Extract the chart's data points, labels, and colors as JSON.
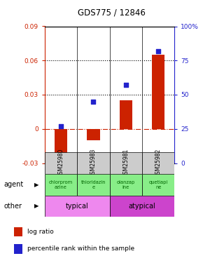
{
  "title": "GDS775 / 12846",
  "samples": [
    "GSM25980",
    "GSM25983",
    "GSM25981",
    "GSM25982"
  ],
  "log_ratios": [
    -0.035,
    -0.01,
    0.025,
    0.065
  ],
  "percentile_ranks": [
    27,
    45,
    57,
    82
  ],
  "left_ylim": [
    -0.03,
    0.09
  ],
  "right_ylim": [
    0,
    100
  ],
  "left_yticks": [
    -0.03,
    0.0,
    0.03,
    0.06,
    0.09
  ],
  "right_yticks": [
    0,
    25,
    50,
    75,
    100
  ],
  "left_ytick_labels": [
    "-0.03",
    "0",
    "0.03",
    "0.06",
    "0.09"
  ],
  "right_ytick_labels": [
    "0",
    "25",
    "50",
    "75",
    "100%"
  ],
  "hlines": [
    0.03,
    0.06
  ],
  "bar_color": "#cc2200",
  "square_color": "#2222cc",
  "agent_labels": [
    "chlorprom\nazine",
    "thioridazin\ne",
    "olanzap\nine",
    "quetiapi\nne"
  ],
  "agent_bg": "#88ee88",
  "other_groups": [
    {
      "label": "typical",
      "span": [
        0,
        2
      ],
      "color": "#ee88ee"
    },
    {
      "label": "atypical",
      "span": [
        2,
        4
      ],
      "color": "#cc44cc"
    }
  ],
  "sample_bg": "#cccccc",
  "legend_items": [
    {
      "color": "#cc2200",
      "label": "log ratio"
    },
    {
      "color": "#2222cc",
      "label": "percentile rank within the sample"
    }
  ]
}
